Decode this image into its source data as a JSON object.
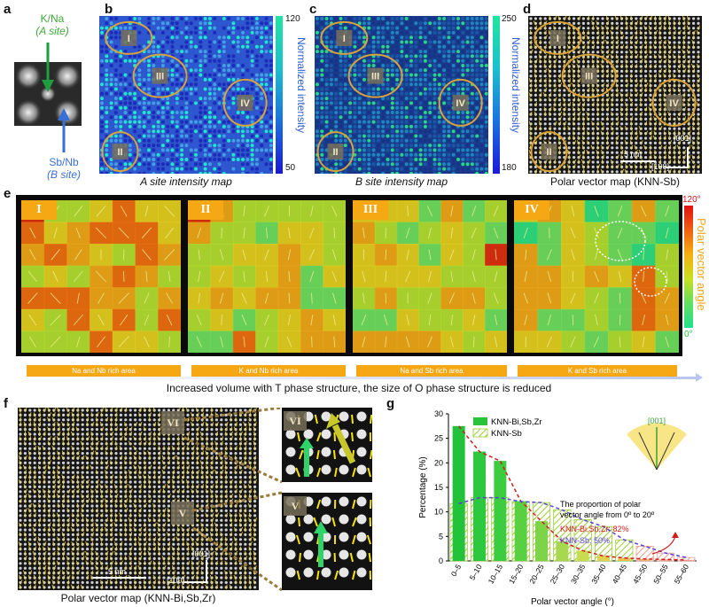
{
  "panel_a": {
    "letter": "a",
    "a_site_label": "K/Na",
    "a_site_sub": "(A site)",
    "b_site_label": "Sb/Nb",
    "b_site_sub": "(B site)"
  },
  "panel_b": {
    "letter": "b",
    "caption": "A site intensity map",
    "colorbar_label": "Normalized intensity",
    "cb_max": "120",
    "cb_min": "50",
    "rois": [
      "I",
      "III",
      "IV",
      "II"
    ]
  },
  "panel_c": {
    "letter": "c",
    "caption": "B site intensity map",
    "colorbar_label": "Normalized intensity",
    "cb_max": "250",
    "cb_min": "180",
    "rois": [
      "I",
      "III",
      "IV",
      "II"
    ]
  },
  "panel_d": {
    "letter": "d",
    "caption": "Polar vector map (KNN-Sb)",
    "rois": [
      "I",
      "III",
      "IV",
      "II"
    ],
    "scale_bar": "5 nm",
    "dir_001": "[001]",
    "dir_100": "[100]"
  },
  "panel_e": {
    "letter": "e",
    "panels": [
      {
        "id": "I",
        "area": "Na and Nb rich area"
      },
      {
        "id": "II",
        "area": "K and Nb rich area"
      },
      {
        "id": "III",
        "area": "Na and Sb rich area"
      },
      {
        "id": "IV",
        "area": "K and Sb rich area"
      }
    ],
    "cb_max": "120°",
    "cb_min": "0°",
    "colorbar_label": "Polar vector angle",
    "arrow_text": "Increased volume with T phase structure, the size of O phase structure is reduced"
  },
  "panel_f": {
    "letter": "f",
    "caption": "Polar vector map (KNN-Bi,Sb,Zr)",
    "rois": [
      "VI",
      "V"
    ],
    "scale_bar": "5 nm",
    "dir_001": "[001]",
    "dir_100": "[100]",
    "inset_tags": [
      "VI",
      "V"
    ]
  },
  "colors": {
    "accent_orange": "#f5a714",
    "roi_ring": "#d9a23a",
    "bar_green": "#27c43c",
    "red_dash": "#d21a1a",
    "blue_dash": "#5a3fe0"
  },
  "chart_data": {
    "type": "bar",
    "panel_letter": "g",
    "categories": [
      "0–5",
      "5–10",
      "10–15",
      "15–20",
      "20–25",
      "25–30",
      "30–35",
      "35–40",
      "40–45",
      "45–50",
      "50–55",
      "55–60"
    ],
    "series": [
      {
        "name": "KNN-Bi,Sb,Zr",
        "values": [
          27.5,
          22.3,
          20.4,
          12.2,
          8.1,
          4.0,
          2.1,
          1.0,
          0.6,
          0.4,
          0.3,
          0.2
        ]
      },
      {
        "name": "KNN-Sb",
        "values": [
          11.7,
          12.9,
          12.9,
          12.1,
          11.9,
          10.4,
          8.4,
          7.0,
          4.3,
          3.0,
          1.6,
          0.7
        ]
      }
    ],
    "xlabel": "Polar vector angle (°)",
    "ylabel": "Percentage (%)",
    "yticks": [
      0,
      5,
      10,
      15,
      20,
      25,
      30
    ],
    "ylim": [
      0,
      30
    ],
    "legend_position": "top-left",
    "inset_label": "[001]",
    "annotation_lines": [
      "The proportion of polar",
      "vector angle from 0º to 20º"
    ],
    "annotation_red": "KNN-Bi,Sb,Zr: 82%",
    "annotation_blue": "KNN-Sb: 50%"
  }
}
